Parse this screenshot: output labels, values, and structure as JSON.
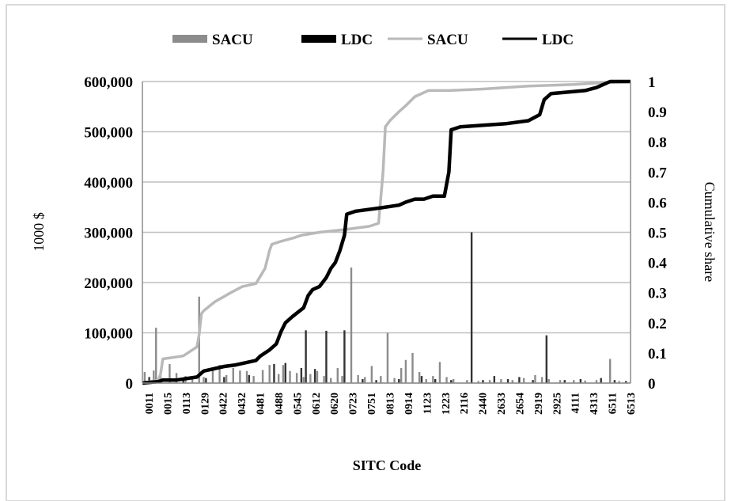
{
  "chart_data": {
    "type": "bar",
    "xlabel": "SITC Code",
    "ylabel": "1000 $",
    "y2label": "Cumulative share",
    "ylim": [
      0,
      600000
    ],
    "y2lim": [
      0,
      1
    ],
    "grid": true,
    "legend_placement": "top",
    "y_ticks": [
      "0",
      "100,000",
      "200,000",
      "300,000",
      "400,000",
      "500,000",
      "600,000"
    ],
    "y2_ticks": [
      "0",
      "0.1",
      "0.2",
      "0.3",
      "0.4",
      "0.5",
      "0.6",
      "0.7",
      "0.8",
      "0.9",
      "1"
    ],
    "categories": [
      "0011",
      "0015",
      "0113",
      "0129",
      "0422",
      "0432",
      "0481",
      "0488",
      "0545",
      "0612",
      "0620",
      "0723",
      "0751",
      "0813",
      "0914",
      "1123",
      "1223",
      "2116",
      "2440",
      "2633",
      "2654",
      "2919",
      "2925",
      "4111",
      "4313",
      "6511",
      "6513"
    ],
    "legend": [
      {
        "label": "SACU",
        "style": "bar",
        "color": "#8c8c8c"
      },
      {
        "label": "LDC",
        "style": "bar",
        "color": "#000000"
      },
      {
        "label": "SACU",
        "style": "line",
        "color": "#b9b9b9"
      },
      {
        "label": "LDC",
        "style": "line",
        "color": "#000000"
      }
    ],
    "series": [
      {
        "name": "SACU",
        "kind": "bar",
        "axis": "left",
        "color": "#8c8c8c",
        "points": [
          [
            1,
            22000
          ],
          [
            5,
            25000
          ],
          [
            6,
            110000
          ],
          [
            8,
            15000
          ],
          [
            12,
            38000
          ],
          [
            15,
            20000
          ],
          [
            19,
            14000
          ],
          [
            22,
            10000
          ],
          [
            25,
            172000
          ],
          [
            27,
            12000
          ],
          [
            31,
            26000
          ],
          [
            34,
            36000
          ],
          [
            37,
            16000
          ],
          [
            40,
            30000
          ],
          [
            43,
            25000
          ],
          [
            46,
            24000
          ],
          [
            49,
            14000
          ],
          [
            53,
            26000
          ],
          [
            56,
            36000
          ],
          [
            60,
            18000
          ],
          [
            62,
            36000
          ],
          [
            65,
            24000
          ],
          [
            68,
            20000
          ],
          [
            71,
            12000
          ],
          [
            74,
            18000
          ],
          [
            77,
            24000
          ],
          [
            80,
            14000
          ],
          [
            83,
            10000
          ],
          [
            86,
            30000
          ],
          [
            88,
            14000
          ],
          [
            92,
            230000
          ],
          [
            95,
            16000
          ],
          [
            98,
            12000
          ],
          [
            101,
            34000
          ],
          [
            105,
            14000
          ],
          [
            108,
            100000
          ],
          [
            111,
            10000
          ],
          [
            114,
            30000
          ],
          [
            116,
            46000
          ],
          [
            119,
            60000
          ],
          [
            122,
            22000
          ],
          [
            125,
            8000
          ],
          [
            128,
            14000
          ],
          [
            131,
            42000
          ],
          [
            134,
            12000
          ],
          [
            137,
            8000
          ],
          [
            143,
            6000
          ],
          [
            148,
            4000
          ],
          [
            153,
            6000
          ],
          [
            158,
            8000
          ],
          [
            163,
            6000
          ],
          [
            168,
            10000
          ],
          [
            173,
            16000
          ],
          [
            176,
            12000
          ],
          [
            179,
            8000
          ],
          [
            184,
            6000
          ],
          [
            190,
            6000
          ],
          [
            195,
            5000
          ],
          [
            200,
            6000
          ],
          [
            206,
            48000
          ],
          [
            210,
            4000
          ]
        ]
      },
      {
        "name": "LDC",
        "kind": "bar",
        "axis": "left",
        "color": "#333333",
        "points": [
          [
            3,
            12000
          ],
          [
            18,
            8000
          ],
          [
            28,
            10000
          ],
          [
            36,
            12000
          ],
          [
            47,
            16000
          ],
          [
            58,
            38000
          ],
          [
            63,
            40000
          ],
          [
            70,
            30000
          ],
          [
            72,
            105000
          ],
          [
            76,
            28000
          ],
          [
            81,
            104000
          ],
          [
            89,
            105000
          ],
          [
            97,
            8000
          ],
          [
            103,
            6000
          ],
          [
            113,
            8000
          ],
          [
            123,
            14000
          ],
          [
            129,
            8000
          ],
          [
            136,
            6000
          ],
          [
            145,
            300000
          ],
          [
            150,
            6000
          ],
          [
            155,
            14000
          ],
          [
            161,
            8000
          ],
          [
            166,
            12000
          ],
          [
            172,
            6000
          ],
          [
            178,
            95000
          ],
          [
            186,
            6000
          ],
          [
            193,
            8000
          ],
          [
            202,
            10000
          ],
          [
            208,
            6000
          ],
          [
            213,
            4000
          ]
        ]
      },
      {
        "name": "SACU",
        "kind": "line",
        "axis": "right",
        "color": "#b9b9b9",
        "points": [
          [
            0,
            0
          ],
          [
            7,
            0.01
          ],
          [
            8,
            0.03
          ],
          [
            9,
            0.08
          ],
          [
            18,
            0.09
          ],
          [
            24,
            0.12
          ],
          [
            25,
            0.16
          ],
          [
            26,
            0.23
          ],
          [
            27,
            0.24
          ],
          [
            32,
            0.27
          ],
          [
            39,
            0.3
          ],
          [
            44,
            0.32
          ],
          [
            50,
            0.33
          ],
          [
            54,
            0.38
          ],
          [
            56,
            0.44
          ],
          [
            57,
            0.46
          ],
          [
            61,
            0.47
          ],
          [
            66,
            0.48
          ],
          [
            70,
            0.49
          ],
          [
            78,
            0.5
          ],
          [
            90,
            0.51
          ],
          [
            100,
            0.52
          ],
          [
            104,
            0.53
          ],
          [
            106,
            0.7
          ],
          [
            107,
            0.85
          ],
          [
            109,
            0.87
          ],
          [
            113,
            0.9
          ],
          [
            116,
            0.92
          ],
          [
            120,
            0.95
          ],
          [
            126,
            0.97
          ],
          [
            135,
            0.97
          ],
          [
            150,
            0.975
          ],
          [
            170,
            0.985
          ],
          [
            190,
            0.99
          ],
          [
            200,
            0.995
          ],
          [
            215,
            1.0
          ]
        ]
      },
      {
        "name": "LDC",
        "kind": "line",
        "axis": "right",
        "color": "#000000",
        "points": [
          [
            0,
            0.0
          ],
          [
            7,
            0.005
          ],
          [
            9,
            0.01
          ],
          [
            15,
            0.01
          ],
          [
            24,
            0.02
          ],
          [
            27,
            0.04
          ],
          [
            36,
            0.055
          ],
          [
            41,
            0.06
          ],
          [
            50,
            0.075
          ],
          [
            52,
            0.09
          ],
          [
            56,
            0.11
          ],
          [
            59,
            0.13
          ],
          [
            61,
            0.17
          ],
          [
            63,
            0.2
          ],
          [
            66,
            0.22
          ],
          [
            71,
            0.25
          ],
          [
            73,
            0.29
          ],
          [
            75,
            0.31
          ],
          [
            78,
            0.32
          ],
          [
            81,
            0.35
          ],
          [
            83,
            0.38
          ],
          [
            85,
            0.4
          ],
          [
            87,
            0.44
          ],
          [
            89,
            0.49
          ],
          [
            90,
            0.56
          ],
          [
            94,
            0.57
          ],
          [
            104,
            0.58
          ],
          [
            113,
            0.59
          ],
          [
            116,
            0.6
          ],
          [
            120,
            0.61
          ],
          [
            124,
            0.61
          ],
          [
            128,
            0.62
          ],
          [
            133,
            0.62
          ],
          [
            135,
            0.7
          ],
          [
            136,
            0.84
          ],
          [
            140,
            0.85
          ],
          [
            150,
            0.855
          ],
          [
            160,
            0.86
          ],
          [
            170,
            0.87
          ],
          [
            175,
            0.89
          ],
          [
            177,
            0.94
          ],
          [
            180,
            0.96
          ],
          [
            195,
            0.97
          ],
          [
            200,
            0.98
          ],
          [
            206,
            1.0
          ],
          [
            215,
            1.0
          ]
        ]
      }
    ]
  }
}
